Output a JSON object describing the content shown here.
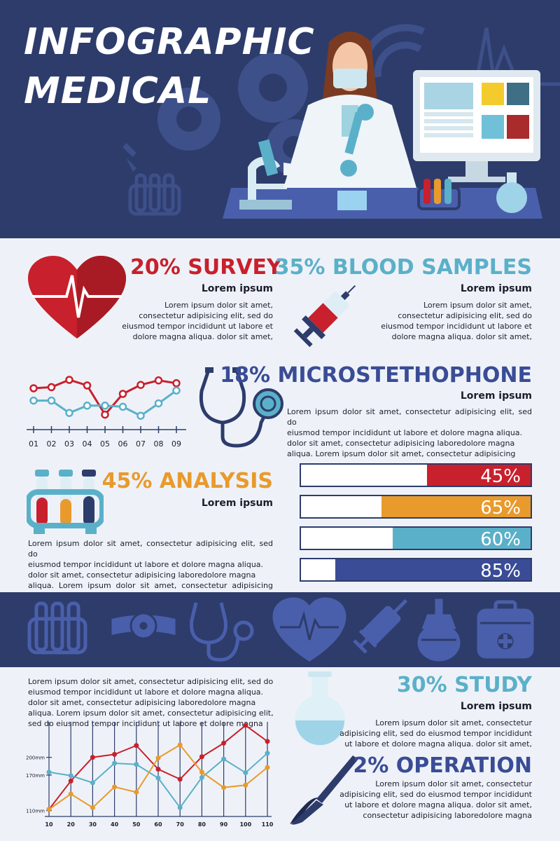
{
  "header": {
    "title_line1": "INFOGRAPHIC",
    "title_line2": "MEDICAL"
  },
  "colors": {
    "navy": "#2d3c6b",
    "red": "#c8202c",
    "blue": "#5bb0c9",
    "orange": "#e89a2c",
    "indigo": "#3a4c95",
    "light": "#eef2f8"
  },
  "survey": {
    "heading": "20% SURVEY",
    "subtitle": "Lorem ipsum",
    "text": [
      "Lorem ipsum dolor sit amet,",
      "consectetur adipisicing elit, sed do",
      "eiusmod tempor incididunt ut labore et",
      "dolore magna aliqua. dolor sit amet,"
    ]
  },
  "blood": {
    "heading": "35% BLOOD SAMPLES",
    "subtitle": "Lorem ipsum",
    "text": [
      "Lorem ipsum dolor sit amet,",
      "consectetur adipisicing elit, sed do",
      "eiusmod tempor incididunt ut labore et",
      "dolore magna aliqua. dolor sit amet,"
    ]
  },
  "micro": {
    "heading": "18% MICROSTETHOPHONE",
    "subtitle": "Lorem ipsum",
    "text": [
      "Lorem ipsum dolor sit amet, consectetur adipisicing elit, sed do",
      "eiusmod tempor incididunt ut labore et dolore magna aliqua.",
      "dolor sit amet, consectetur adipisicing laboredolore magna",
      "aliqua. Lorem ipsum dolor sit amet, consectetur adipisicing"
    ]
  },
  "analysis": {
    "heading": "45% ANALYSIS",
    "subtitle": "Lorem ipsum",
    "text": [
      "Lorem ipsum dolor sit amet, consectetur adipisicing elit, sed do",
      "eiusmod tempor incididunt ut labore et dolore magna aliqua.",
      "dolor sit amet, consectetur adipisicing laboredolore magna",
      "aliqua. Lorem ipsum dolor sit amet, consectetur adipisicing elit,"
    ]
  },
  "bottom_text": [
    "Lorem ipsum dolor sit amet, consectetur adipisicing elit, sed do",
    "eiusmod tempor incididunt ut labore et dolore magna aliqua.",
    "dolor sit amet, consectetur adipisicing laboredolore magna",
    "aliqua. Lorem ipsum dolor sit amet, consectetur adipisicing elit,",
    "sed do eiusmod tempor incididunt ut labore et dolore magna"
  ],
  "study": {
    "heading": "30% STUDY",
    "subtitle": "Lorem ipsum",
    "text": [
      "Lorem ipsum dolor sit amet, consectetur",
      "adipisicing elit, sed do eiusmod tempor incididunt",
      "ut labore et dolore magna aliqua. dolor sit amet,"
    ]
  },
  "operation": {
    "heading": "2% OPERATION",
    "text": [
      "Lorem ipsum dolor sit amet, consectetur",
      "adipisicing elit, sed do eiusmod tempor incididunt",
      "ut labore et dolore magna aliqua. dolor sit amet,",
      "consectetur adipisicing laboredolore magna"
    ]
  },
  "icons": [
    "test-tube-rack-icon",
    "head-mirror-icon",
    "stethoscope-icon",
    "heart-pulse-icon",
    "syringe-icon",
    "enema-bulb-icon",
    "first-aid-kit-icon"
  ],
  "chart_data": [
    {
      "type": "line",
      "x": [
        "01",
        "02",
        "03",
        "04",
        "05",
        "06",
        "07",
        "08",
        "09"
      ],
      "ylim": [
        0,
        10
      ],
      "grid": false,
      "series": [
        {
          "color": "#c8202c",
          "values": [
            7.0,
            7.2,
            8.5,
            7.5,
            2.3,
            6.0,
            7.6,
            8.4,
            7.9
          ]
        },
        {
          "color": "#5bb0c9",
          "values": [
            4.8,
            4.8,
            2.6,
            3.9,
            3.9,
            3.7,
            2.1,
            4.3,
            6.6
          ]
        }
      ]
    },
    {
      "type": "bar",
      "categories": [
        "red",
        "orange",
        "blue",
        "indigo"
      ],
      "values": [
        45,
        65,
        60,
        85
      ],
      "labels": [
        "45%",
        "65%",
        "60%",
        "85%"
      ],
      "colors": [
        "#c8202c",
        "#e89a2c",
        "#5bb0c9",
        "#3a4c95"
      ],
      "ylim": [
        0,
        100
      ]
    },
    {
      "type": "line",
      "x": [
        10,
        20,
        30,
        40,
        50,
        60,
        70,
        80,
        90,
        100,
        110
      ],
      "xlim": [
        10,
        110
      ],
      "ylim": [
        100,
        260
      ],
      "ytick_labels": [
        {
          "value": 200,
          "label": "200mm"
        },
        {
          "value": 170,
          "label": "170mm"
        },
        {
          "value": 110,
          "label": "110mm"
        }
      ],
      "grid": true,
      "series": [
        {
          "color": "#c8202c",
          "values": [
            112,
            160,
            200,
            205,
            220,
            180,
            163,
            201,
            224,
            254,
            227
          ]
        },
        {
          "color": "#5bb0c9",
          "values": [
            175,
            169,
            157,
            190,
            188,
            165,
            115,
            166,
            197,
            174,
            207
          ]
        },
        {
          "color": "#e89a2c",
          "values": [
            112,
            138,
            115,
            150,
            141,
            199,
            221,
            175,
            149,
            153,
            183
          ]
        }
      ]
    }
  ]
}
